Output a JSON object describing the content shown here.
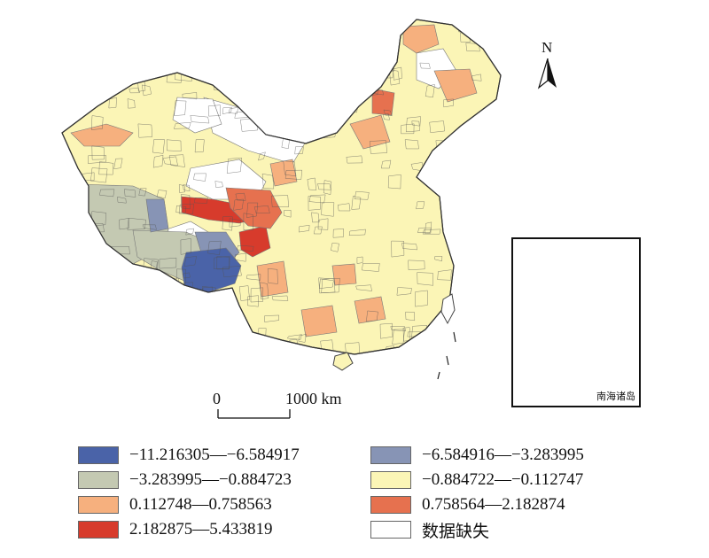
{
  "map": {
    "north_label": "N",
    "scale": {
      "zero": "0",
      "distance": "1000 km"
    },
    "inset_label": "南海诸岛",
    "colors": {
      "c1": "#4a63a8",
      "c2": "#8794b5",
      "c3": "#c4c9b2",
      "c4": "#fbf5b6",
      "c5": "#f6b07e",
      "c6": "#e6714f",
      "c7": "#d73b2c",
      "missing": "#ffffff",
      "boundary": "#555555"
    }
  },
  "legend": [
    {
      "label": "−11.216305—−6.584917",
      "color": "#4a63a8"
    },
    {
      "label": "−6.584916—−3.283995",
      "color": "#8794b5"
    },
    {
      "label": "−3.283995—−0.884723",
      "color": "#c4c9b2"
    },
    {
      "label": "−0.884722—−0.112747",
      "color": "#fbf5b6"
    },
    {
      "label": "0.112748—0.758563",
      "color": "#f6b07e"
    },
    {
      "label": "0.758564—2.182874",
      "color": "#e6714f"
    },
    {
      "label": "2.182875—5.433819",
      "color": "#d73b2c"
    },
    {
      "label": "数据缺失",
      "color": "#ffffff"
    }
  ]
}
